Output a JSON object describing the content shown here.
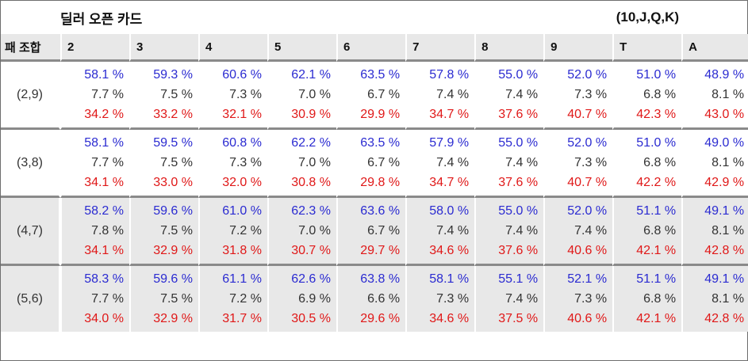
{
  "title": "딜러 오픈 카드",
  "dealer_group_note": "(10,J,Q,K)",
  "header": {
    "first": "패 조합",
    "columns": [
      "2",
      "3",
      "4",
      "5",
      "6",
      "7",
      "8",
      "9",
      "T",
      "A"
    ]
  },
  "rows": [
    {
      "combo": "(2,9)",
      "win": [
        "58.1 %",
        "59.3 %",
        "60.6 %",
        "62.1 %",
        "63.5 %",
        "57.8 %",
        "55.0 %",
        "52.0 %",
        "51.0 %",
        "48.9 %"
      ],
      "push": [
        "7.7 %",
        "7.5 %",
        "7.3 %",
        "7.0 %",
        "6.7 %",
        "7.4 %",
        "7.4 %",
        "7.3 %",
        "6.8 %",
        "8.1 %"
      ],
      "lose": [
        "34.2 %",
        "33.2 %",
        "32.1 %",
        "30.9 %",
        "29.9 %",
        "34.7 %",
        "37.6 %",
        "40.7 %",
        "42.3 %",
        "43.0 %"
      ]
    },
    {
      "combo": "(3,8)",
      "win": [
        "58.1 %",
        "59.5 %",
        "60.8 %",
        "62.2 %",
        "63.5 %",
        "57.9 %",
        "55.0 %",
        "52.0 %",
        "51.0 %",
        "49.0 %"
      ],
      "push": [
        "7.7 %",
        "7.5 %",
        "7.3 %",
        "7.0 %",
        "6.7 %",
        "7.4 %",
        "7.4 %",
        "7.3 %",
        "6.8 %",
        "8.1 %"
      ],
      "lose": [
        "34.1 %",
        "33.0 %",
        "32.0 %",
        "30.8 %",
        "29.8 %",
        "34.7 %",
        "37.6 %",
        "40.7 %",
        "42.2 %",
        "42.9 %"
      ]
    },
    {
      "combo": "(4,7)",
      "win": [
        "58.2 %",
        "59.6 %",
        "61.0 %",
        "62.3 %",
        "63.6 %",
        "58.0 %",
        "55.0 %",
        "52.0 %",
        "51.1 %",
        "49.1 %"
      ],
      "push": [
        "7.8 %",
        "7.5 %",
        "7.2 %",
        "7.0 %",
        "6.7 %",
        "7.4 %",
        "7.4 %",
        "7.4 %",
        "6.8 %",
        "8.1 %"
      ],
      "lose": [
        "34.1 %",
        "32.9 %",
        "31.8 %",
        "30.7 %",
        "29.7 %",
        "34.6 %",
        "37.6 %",
        "40.6 %",
        "42.1 %",
        "42.8 %"
      ]
    },
    {
      "combo": "(5,6)",
      "win": [
        "58.3 %",
        "59.6 %",
        "61.1 %",
        "62.6 %",
        "63.8 %",
        "58.1 %",
        "55.1 %",
        "52.1 %",
        "51.1 %",
        "49.1 %"
      ],
      "push": [
        "7.7 %",
        "7.5 %",
        "7.2 %",
        "6.9 %",
        "6.6 %",
        "7.3 %",
        "7.4 %",
        "7.3 %",
        "6.8 %",
        "8.1 %"
      ],
      "lose": [
        "34.0 %",
        "32.9 %",
        "31.7 %",
        "30.5 %",
        "29.6 %",
        "34.6 %",
        "37.5 %",
        "40.6 %",
        "42.1 %",
        "42.8 %"
      ]
    }
  ],
  "colors": {
    "win": "#2b2bd1",
    "push": "#333333",
    "lose": "#e01818",
    "header_bg": "#e8e8e8",
    "divider": "#8a8a8a"
  }
}
